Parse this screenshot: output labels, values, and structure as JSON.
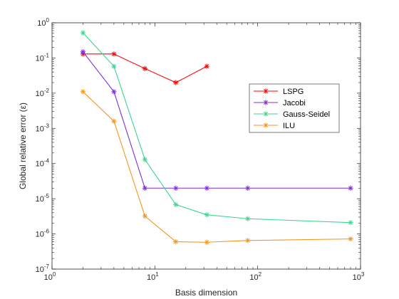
{
  "chart_data": {
    "type": "line",
    "title": "",
    "xlabel": "Basis dimension",
    "ylabel": "Global relative error (ε)",
    "xscale": "log",
    "yscale": "log",
    "xlim": [
      1,
      1000
    ],
    "ylim": [
      1e-07,
      1
    ],
    "grid": false,
    "legend_position": "right",
    "x_ticks": [
      {
        "base": "10",
        "exp": "0",
        "value": 1
      },
      {
        "base": "10",
        "exp": "1",
        "value": 10
      },
      {
        "base": "10",
        "exp": "2",
        "value": 100
      },
      {
        "base": "10",
        "exp": "3",
        "value": 1000
      }
    ],
    "y_ticks": [
      {
        "base": "10",
        "exp": "0",
        "value": 1
      },
      {
        "base": "10",
        "exp": "-1",
        "value": 0.1
      },
      {
        "base": "10",
        "exp": "-2",
        "value": 0.01
      },
      {
        "base": "10",
        "exp": "-3",
        "value": 0.001
      },
      {
        "base": "10",
        "exp": "-4",
        "value": 0.0001
      },
      {
        "base": "10",
        "exp": "-5",
        "value": 1e-05
      },
      {
        "base": "10",
        "exp": "-6",
        "value": 1e-06
      },
      {
        "base": "10",
        "exp": "-7",
        "value": 1e-07
      }
    ],
    "series": [
      {
        "name": "LSPG",
        "color": "#ff0000",
        "x": [
          2,
          4,
          8,
          16,
          32
        ],
        "y": [
          0.13,
          0.13,
          0.05,
          0.02,
          0.058
        ]
      },
      {
        "name": "Jacobi",
        "color": "#7e2fd8",
        "x": [
          2,
          4,
          8,
          16,
          32,
          80,
          800
        ],
        "y": [
          0.15,
          0.011,
          2e-05,
          2e-05,
          2e-05,
          2e-05,
          2e-05
        ]
      },
      {
        "name": "Gauss-Seidel",
        "color": "#3dd68f",
        "x": [
          2,
          4,
          8,
          16,
          32,
          80,
          800
        ],
        "y": [
          0.52,
          0.058,
          0.00013,
          6.8e-06,
          3.5e-06,
          2.7e-06,
          2.1e-06
        ]
      },
      {
        "name": "ILU",
        "color": "#f5961e",
        "x": [
          2,
          4,
          8,
          16,
          32,
          80,
          800
        ],
        "y": [
          0.011,
          0.0016,
          3.2e-06,
          6e-07,
          5.8e-07,
          6.5e-07,
          7.2e-07
        ]
      }
    ]
  }
}
